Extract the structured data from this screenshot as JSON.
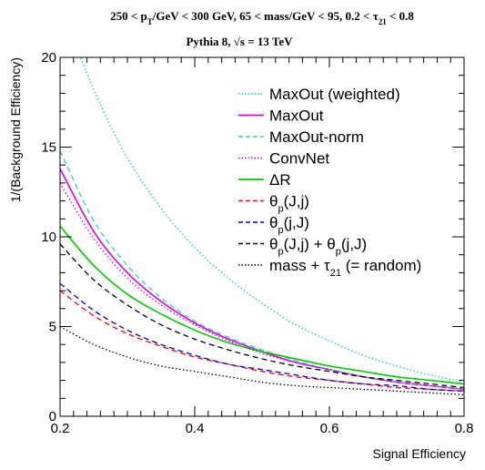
{
  "chart_data": {
    "type": "line",
    "title_line1": "250 < p_T/GeV < 300 GeV, 65 < mass/GeV < 95, 0.2 < τ_21 < 0.8",
    "title_line2": "Pythia 8,  √s = 13 TeV",
    "xlabel": "Signal Efficiency",
    "ylabel": "1/(Background Efficiency)",
    "xlim": [
      0.2,
      0.8
    ],
    "ylim": [
      0,
      20
    ],
    "x_ticks": [
      "0.2",
      "0.4",
      "0.6",
      "0.8"
    ],
    "y_ticks": [
      "0",
      "5",
      "10",
      "15",
      "20"
    ],
    "grid": false,
    "legend_position": "top-right",
    "x": [
      0.2,
      0.25,
      0.3,
      0.35,
      0.4,
      0.45,
      0.5,
      0.55,
      0.6,
      0.65,
      0.7,
      0.75,
      0.8
    ],
    "series": [
      {
        "name": "MaxOut (weighted)",
        "color": "#00cccc",
        "dash": "dotted",
        "values": [
          23.0,
          18.2,
          14.4,
          11.6,
          9.4,
          7.7,
          6.3,
          5.1,
          4.2,
          3.4,
          2.8,
          2.3,
          1.9
        ]
      },
      {
        "name": "MaxOut",
        "color": "#e000e0",
        "dash": "solid",
        "values": [
          13.8,
          10.3,
          8.0,
          6.4,
          5.2,
          4.3,
          3.6,
          3.0,
          2.6,
          2.2,
          1.9,
          1.7,
          1.5
        ]
      },
      {
        "name": "MaxOut-norm",
        "color": "#33cccc",
        "dash": "dashed",
        "values": [
          14.8,
          10.9,
          8.4,
          6.6,
          5.3,
          4.4,
          3.7,
          3.1,
          2.6,
          2.2,
          1.9,
          1.7,
          1.5
        ]
      },
      {
        "name": "ConvNet",
        "color": "#cc00cc",
        "dash": "dotted",
        "values": [
          13.0,
          9.9,
          7.7,
          6.2,
          5.1,
          4.2,
          3.5,
          3.0,
          2.6,
          2.2,
          1.9,
          1.7,
          1.5
        ]
      },
      {
        "name": "ΔR",
        "color": "#00cc00",
        "dash": "solid",
        "values": [
          10.6,
          8.4,
          6.8,
          5.7,
          4.8,
          4.1,
          3.6,
          3.2,
          2.8,
          2.5,
          2.2,
          2.0,
          1.8
        ]
      },
      {
        "name": "θ_p(J,j)",
        "color": "#ff0000",
        "dash": "dashed",
        "values": [
          7.0,
          5.6,
          4.6,
          3.9,
          3.3,
          2.9,
          2.5,
          2.2,
          2.0,
          1.8,
          1.6,
          1.5,
          1.4
        ]
      },
      {
        "name": "θ_p(j,J)",
        "color": "#0000cc",
        "dash": "dashed",
        "values": [
          7.4,
          5.9,
          4.8,
          4.0,
          3.4,
          2.9,
          2.6,
          2.3,
          2.0,
          1.8,
          1.7,
          1.5,
          1.4
        ]
      },
      {
        "name": "θ_p(J,j) + θ_p(j,J)",
        "color": "#000000",
        "dash": "dashed",
        "values": [
          9.6,
          7.6,
          6.2,
          5.1,
          4.3,
          3.7,
          3.2,
          2.8,
          2.5,
          2.2,
          2.0,
          1.8,
          1.6
        ]
      },
      {
        "name": "mass + τ_21 (= random)",
        "color": "#000000",
        "dash": "dotted",
        "values": [
          5.0,
          4.0,
          3.3,
          2.8,
          2.5,
          2.2,
          1.9,
          1.7,
          1.6,
          1.5,
          1.4,
          1.3,
          1.2
        ]
      }
    ]
  }
}
